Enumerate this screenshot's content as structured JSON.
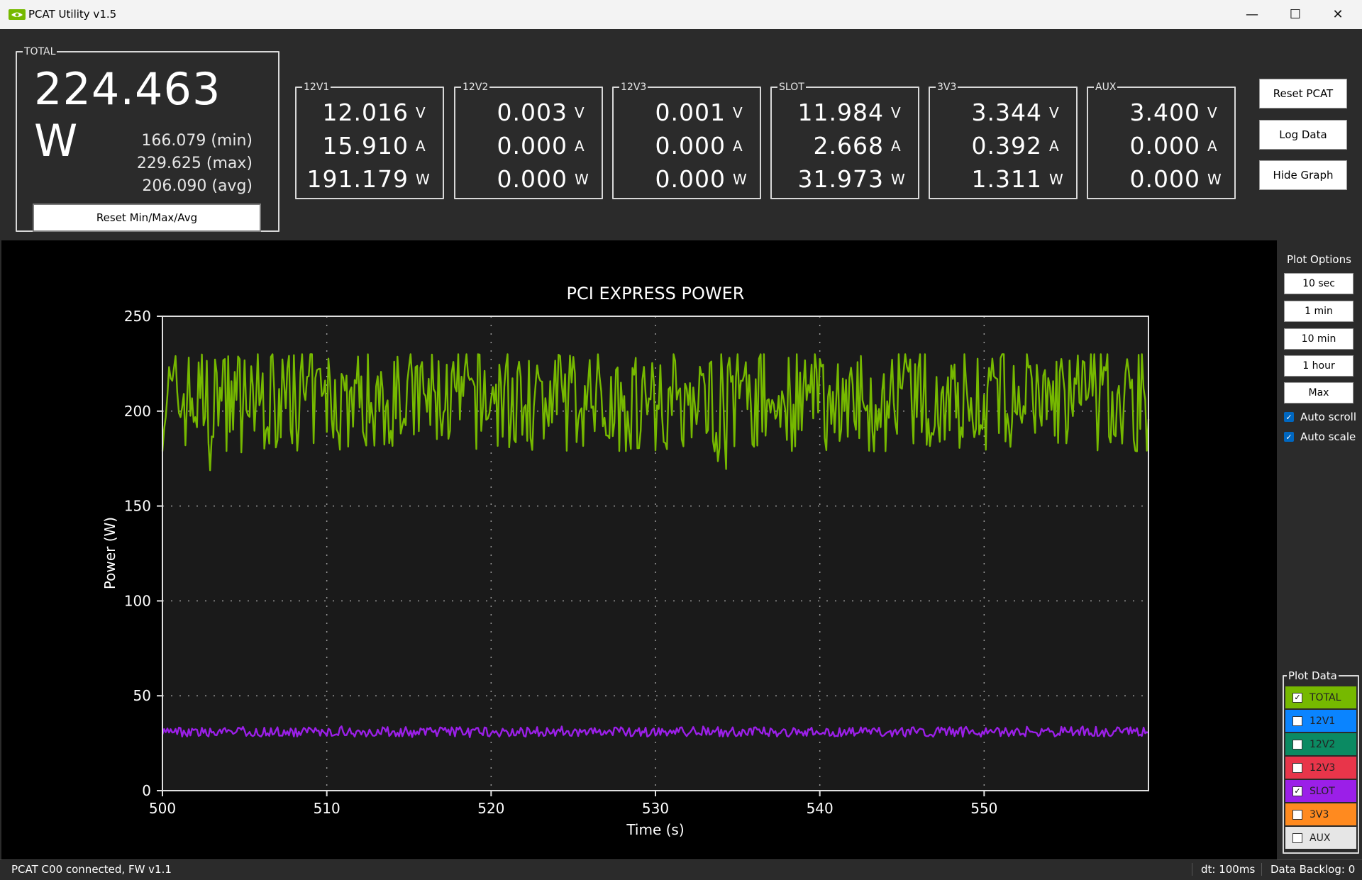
{
  "window": {
    "title": "PCAT Utility v1.5",
    "minimize": "—",
    "maximize": "☐",
    "close": "✕",
    "icon": "nvidia-logo-icon"
  },
  "total": {
    "legend": "TOTAL",
    "value": "224.463 W",
    "min": "166.079 (min)",
    "max": "229.625 (max)",
    "avg": "206.090 (avg)",
    "reset_label": "Reset Min/Max/Avg"
  },
  "rails": [
    {
      "name": "12V1",
      "volts": "12.016",
      "amps": "15.910",
      "watts": "191.179"
    },
    {
      "name": "12V2",
      "volts": "0.003",
      "amps": "0.000",
      "watts": "0.000"
    },
    {
      "name": "12V3",
      "volts": "0.001",
      "amps": "0.000",
      "watts": "0.000"
    },
    {
      "name": "SLOT",
      "volts": "11.984",
      "amps": "2.668",
      "watts": "31.973"
    },
    {
      "name": "3V3",
      "volts": "3.344",
      "amps": "0.392",
      "watts": "1.311"
    },
    {
      "name": "AUX",
      "volts": "3.400",
      "amps": "0.000",
      "watts": "0.000"
    }
  ],
  "units": {
    "v": "V",
    "a": "A",
    "w": "W"
  },
  "buttons": {
    "reset_pcat": "Reset PCAT",
    "log_data": "Log Data",
    "hide_graph": "Hide Graph"
  },
  "plot_options": {
    "title": "Plot Options",
    "ranges": [
      "10 sec",
      "1 min",
      "10 min",
      "1 hour",
      "Max"
    ],
    "auto_scroll": {
      "label": "Auto scroll",
      "checked": true
    },
    "auto_scale": {
      "label": "Auto scale",
      "checked": true
    }
  },
  "plot_data": {
    "title": "Plot Data",
    "items": [
      {
        "label": "TOTAL",
        "color": "#76b900",
        "checked": true
      },
      {
        "label": "12V1",
        "color": "#0a84ff",
        "checked": false
      },
      {
        "label": "12V2",
        "color": "#0b8a62",
        "checked": false
      },
      {
        "label": "12V3",
        "color": "#e8354a",
        "checked": false
      },
      {
        "label": "SLOT",
        "color": "#9b1fe8",
        "checked": true
      },
      {
        "label": "3V3",
        "color": "#ff8a1f",
        "checked": false
      },
      {
        "label": "AUX",
        "color": "#e6e6e6",
        "checked": false
      }
    ]
  },
  "chart_data": {
    "type": "line",
    "title": "PCI EXPRESS POWER",
    "xlabel": "Time (s)",
    "ylabel": "Power (W)",
    "xlim": [
      500,
      560
    ],
    "ylim": [
      0,
      250
    ],
    "xticks": [
      500,
      510,
      520,
      530,
      540,
      550
    ],
    "yticks": [
      0,
      50,
      100,
      150,
      200,
      250
    ],
    "grid": true,
    "series": [
      {
        "name": "TOTAL",
        "color": "#76b900",
        "mean": 206,
        "min": 166,
        "max": 230
      },
      {
        "name": "SLOT",
        "color": "#9b1fe8",
        "mean": 31,
        "min": 28,
        "max": 34
      }
    ]
  },
  "status": {
    "connection": "PCAT C00 connected, FW v1.1",
    "dt": "dt: 100ms",
    "backlog": "Data Backlog: 0"
  }
}
